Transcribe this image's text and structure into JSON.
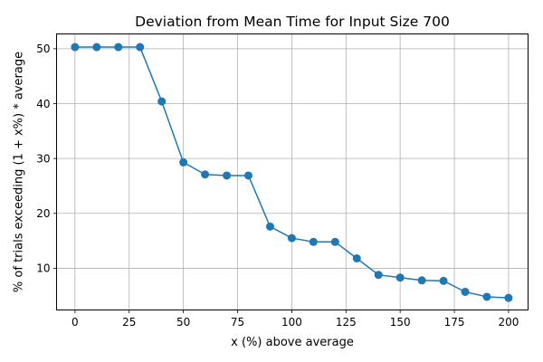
{
  "chart_data": {
    "type": "line",
    "title": "Deviation from Mean Time for Input Size 700",
    "xlabel": "x (%) above average",
    "ylabel": "% of trials exceeding (1 + x%) * average",
    "xlim": [
      -8.5,
      209
    ],
    "ylim": [
      2.4,
      52.7
    ],
    "xticks": [
      0,
      25,
      50,
      75,
      100,
      125,
      150,
      175,
      200
    ],
    "yticks": [
      10,
      20,
      30,
      40,
      50
    ],
    "grid": true,
    "legend": "none",
    "color": "#1f77b4",
    "marker": "circle",
    "series": [
      {
        "x": [
          0,
          10,
          20,
          30,
          40,
          50,
          60,
          70,
          80,
          90,
          100,
          110,
          120,
          130,
          140,
          150,
          160,
          170,
          180,
          190,
          200
        ],
        "values": [
          50.3,
          50.3,
          50.3,
          50.3,
          40.4,
          29.3,
          27.1,
          26.9,
          26.9,
          17.6,
          15.5,
          14.8,
          14.8,
          11.8,
          8.8,
          8.3,
          7.8,
          7.7,
          5.7,
          4.8,
          4.6
        ]
      }
    ]
  }
}
